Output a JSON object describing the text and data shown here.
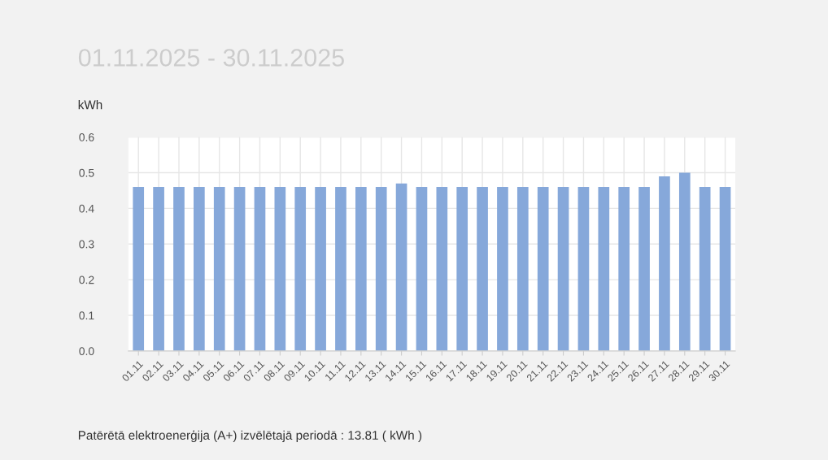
{
  "chart_data": {
    "type": "bar",
    "title": "01.11.2025 - 30.11.2025",
    "ylabel": "kWh",
    "categories": [
      "01.11",
      "02.11",
      "03.11",
      "04.11",
      "05.11",
      "06.11",
      "07.11",
      "08.11",
      "09.11",
      "10.11",
      "11.11",
      "12.11",
      "13.11",
      "14.11",
      "15.11",
      "16.11",
      "17.11",
      "18.11",
      "19.11",
      "20.11",
      "21.11",
      "22.11",
      "23.11",
      "24.11",
      "25.11",
      "26.11",
      "27.11",
      "28.11",
      "29.11",
      "30.11"
    ],
    "values": [
      0.46,
      0.46,
      0.46,
      0.46,
      0.46,
      0.46,
      0.46,
      0.46,
      0.46,
      0.46,
      0.46,
      0.46,
      0.46,
      0.47,
      0.46,
      0.46,
      0.46,
      0.46,
      0.46,
      0.46,
      0.46,
      0.46,
      0.46,
      0.46,
      0.46,
      0.46,
      0.49,
      0.5,
      0.46,
      0.46
    ],
    "color": "#86a8da",
    "ylim": [
      0,
      0.6
    ],
    "yticks": [
      {
        "value": 0,
        "label": "0.0"
      },
      0.1,
      0.2,
      0.3,
      0.4,
      0.5,
      0.6
    ],
    "grid": true,
    "annotations": [
      "Patērētā elektroenerģija (A+) izvēlētajā periodā : 13.81 ( kWh )"
    ]
  }
}
